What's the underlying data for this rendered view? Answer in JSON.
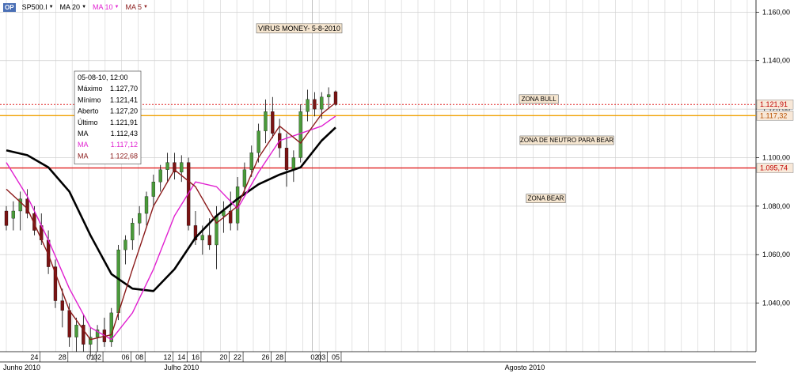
{
  "toolbar": {
    "logo_text": "OP",
    "symbol": "SP500.I",
    "indicators": [
      {
        "label": "MA 20",
        "color": "#000000"
      },
      {
        "label": "MA 10",
        "color": "#e020d0"
      },
      {
        "label": "MA 5",
        "color": "#8b1a1a"
      }
    ]
  },
  "tooltip": {
    "header": "05-08-10, 12:00",
    "rows": [
      {
        "label": "Máximo",
        "value": "1.127,70",
        "color": "#000000"
      },
      {
        "label": "Mínimo",
        "value": "1.121,41",
        "color": "#000000"
      },
      {
        "label": "Aberto",
        "value": "1.127,20",
        "color": "#000000"
      },
      {
        "label": "Último",
        "value": "1.121,91",
        "color": "#000000"
      },
      {
        "label": "MA",
        "value": "1.112,43",
        "color": "#000000"
      },
      {
        "label": "MA",
        "value": "1.117,12",
        "color": "#e020d0"
      },
      {
        "label": "MA",
        "value": "1.122,68",
        "color": "#8b1a1a"
      }
    ]
  },
  "chart_data": {
    "type": "line",
    "title": "VIRUS MONEY- 5-8-2010",
    "ylim": [
      1020,
      1165
    ],
    "y_ticks": [
      1040,
      1060,
      1080,
      1100,
      1120,
      1140,
      1160
    ],
    "y_tick_labels": [
      "1.040,00",
      "1.060,00",
      "1.080,00",
      "1.100,00",
      "1.120,00",
      "1.140,00",
      "1.160,00"
    ],
    "x_labels": [
      "24",
      "28",
      "01",
      "02",
      "06",
      "08",
      "12",
      "14",
      "16",
      "20",
      "22",
      "26",
      "28",
      "02",
      "03",
      "05"
    ],
    "x_label_days": [
      -7,
      -3,
      1,
      2,
      6,
      8,
      12,
      14,
      16,
      20,
      22,
      26,
      28,
      33,
      34,
      36
    ],
    "month_labels": [
      {
        "label": "Junho 2010",
        "day": -15
      },
      {
        "label": "Julho 2010",
        "day": 14
      },
      {
        "label": "Agosto 2010",
        "day": 63
      }
    ],
    "x_day_range": [
      -11,
      96
    ],
    "candle_days": [
      -11,
      -10,
      -9,
      -8,
      -7,
      -6,
      -5,
      -4,
      -3,
      -2,
      -1,
      0,
      1,
      2,
      3,
      4,
      5,
      6,
      7,
      8,
      9,
      10,
      11,
      12,
      13,
      14,
      15,
      16,
      17,
      18,
      19,
      20,
      21,
      22,
      23,
      24,
      25,
      26,
      27,
      28,
      29,
      30,
      31,
      32,
      33,
      34,
      35,
      36
    ],
    "candles": [
      {
        "o": 1078,
        "h": 1080,
        "l": 1070,
        "c": 1072
      },
      {
        "o": 1075,
        "h": 1082,
        "l": 1070,
        "c": 1078
      },
      {
        "o": 1078,
        "h": 1086,
        "l": 1070,
        "c": 1083
      },
      {
        "o": 1083,
        "h": 1087,
        "l": 1075,
        "c": 1077
      },
      {
        "o": 1077,
        "h": 1080,
        "l": 1068,
        "c": 1070
      },
      {
        "o": 1072,
        "h": 1077,
        "l": 1064,
        "c": 1066
      },
      {
        "o": 1066,
        "h": 1070,
        "l": 1052,
        "c": 1055
      },
      {
        "o": 1055,
        "h": 1058,
        "l": 1038,
        "c": 1041
      },
      {
        "o": 1041,
        "h": 1046,
        "l": 1030,
        "c": 1037
      },
      {
        "o": 1037,
        "h": 1040,
        "l": 1022,
        "c": 1026
      },
      {
        "o": 1026,
        "h": 1034,
        "l": 1020,
        "c": 1031
      },
      {
        "o": 1031,
        "h": 1035,
        "l": 1020,
        "c": 1023
      },
      {
        "o": 1023,
        "h": 1030,
        "l": 1018,
        "c": 1026
      },
      {
        "o": 1026,
        "h": 1031,
        "l": 1020,
        "c": 1029
      },
      {
        "o": 1029,
        "h": 1034,
        "l": 1022,
        "c": 1024
      },
      {
        "o": 1024,
        "h": 1038,
        "l": 1022,
        "c": 1036
      },
      {
        "o": 1036,
        "h": 1064,
        "l": 1033,
        "c": 1062
      },
      {
        "o": 1062,
        "h": 1068,
        "l": 1056,
        "c": 1066
      },
      {
        "o": 1066,
        "h": 1075,
        "l": 1062,
        "c": 1073
      },
      {
        "o": 1073,
        "h": 1080,
        "l": 1068,
        "c": 1077
      },
      {
        "o": 1077,
        "h": 1086,
        "l": 1072,
        "c": 1084
      },
      {
        "o": 1084,
        "h": 1093,
        "l": 1080,
        "c": 1090
      },
      {
        "o": 1090,
        "h": 1097,
        "l": 1086,
        "c": 1095
      },
      {
        "o": 1095,
        "h": 1102,
        "l": 1090,
        "c": 1098
      },
      {
        "o": 1098,
        "h": 1102,
        "l": 1091,
        "c": 1094
      },
      {
        "o": 1094,
        "h": 1101,
        "l": 1090,
        "c": 1098
      },
      {
        "o": 1098,
        "h": 1100,
        "l": 1070,
        "c": 1072
      },
      {
        "o": 1072,
        "h": 1078,
        "l": 1064,
        "c": 1066
      },
      {
        "o": 1066,
        "h": 1072,
        "l": 1060,
        "c": 1068
      },
      {
        "o": 1068,
        "h": 1075,
        "l": 1062,
        "c": 1064
      },
      {
        "o": 1064,
        "h": 1080,
        "l": 1054,
        "c": 1076
      },
      {
        "o": 1076,
        "h": 1082,
        "l": 1069,
        "c": 1078
      },
      {
        "o": 1078,
        "h": 1086,
        "l": 1070,
        "c": 1073
      },
      {
        "o": 1073,
        "h": 1092,
        "l": 1070,
        "c": 1088
      },
      {
        "o": 1088,
        "h": 1098,
        "l": 1085,
        "c": 1095
      },
      {
        "o": 1095,
        "h": 1105,
        "l": 1092,
        "c": 1102
      },
      {
        "o": 1102,
        "h": 1114,
        "l": 1098,
        "c": 1111
      },
      {
        "o": 1111,
        "h": 1124,
        "l": 1106,
        "c": 1119
      },
      {
        "o": 1119,
        "h": 1125,
        "l": 1108,
        "c": 1110
      },
      {
        "o": 1110,
        "h": 1116,
        "l": 1100,
        "c": 1104
      },
      {
        "o": 1104,
        "h": 1110,
        "l": 1088,
        "c": 1095
      },
      {
        "o": 1095,
        "h": 1103,
        "l": 1090,
        "c": 1100
      },
      {
        "o": 1100,
        "h": 1122,
        "l": 1098,
        "c": 1119
      },
      {
        "o": 1119,
        "h": 1128,
        "l": 1115,
        "c": 1124
      },
      {
        "o": 1124,
        "h": 1127,
        "l": 1117,
        "c": 1120
      },
      {
        "o": 1120,
        "h": 1127,
        "l": 1116,
        "c": 1125
      },
      {
        "o": 1125,
        "h": 1129,
        "l": 1120,
        "c": 1126
      },
      {
        "o": 1127.2,
        "h": 1127.7,
        "l": 1121.41,
        "c": 1121.91
      }
    ],
    "series": [
      {
        "name": "MA 20",
        "color": "#000000",
        "days": [
          -11,
          -8,
          -5,
          -2,
          1,
          4,
          7,
          10,
          13,
          16,
          19,
          22,
          25,
          28,
          31,
          34,
          36
        ],
        "values": [
          1103,
          1101,
          1096,
          1086,
          1068,
          1052,
          1046,
          1045,
          1054,
          1067,
          1076,
          1083,
          1089,
          1093,
          1096,
          1107,
          1112.43
        ]
      },
      {
        "name": "MA 10",
        "color": "#e020d0",
        "days": [
          -11,
          -8,
          -5,
          -2,
          1,
          4,
          7,
          10,
          13,
          16,
          19,
          22,
          25,
          28,
          31,
          34,
          36
        ],
        "values": [
          1098,
          1084,
          1066,
          1046,
          1030,
          1025,
          1036,
          1054,
          1076,
          1090,
          1088,
          1079,
          1094,
          1107,
          1110,
          1113,
          1117.12
        ]
      },
      {
        "name": "MA 5",
        "color": "#8b1a1a",
        "days": [
          -11,
          -8,
          -5,
          -2,
          1,
          4,
          7,
          10,
          13,
          16,
          19,
          22,
          25,
          28,
          31,
          34,
          36
        ],
        "values": [
          1087,
          1079,
          1060,
          1037,
          1025,
          1027,
          1054,
          1080,
          1095,
          1088,
          1073,
          1080,
          1100,
          1113,
          1106,
          1118,
          1122.68
        ]
      }
    ],
    "hlines": [
      {
        "value": 1121.91,
        "label": "1.121,91",
        "color": "#e02020",
        "dashed": true
      },
      {
        "value": 1117.32,
        "label": "1.117,32",
        "color": "#f0a000",
        "dashed": false
      },
      {
        "value": 1095.74,
        "label": "1.095,74",
        "color": "#e02020",
        "dashed": false
      }
    ],
    "zone_labels": [
      {
        "text": "ZONA BULL",
        "day": 65,
        "value": 1124
      },
      {
        "text": "ZONA DE NEUTRO PARA BEAR",
        "day": 69,
        "value": 1107
      },
      {
        "text": "ZONA BEAR",
        "day": 66,
        "value": 1083
      }
    ],
    "current_day_value": 33
  }
}
